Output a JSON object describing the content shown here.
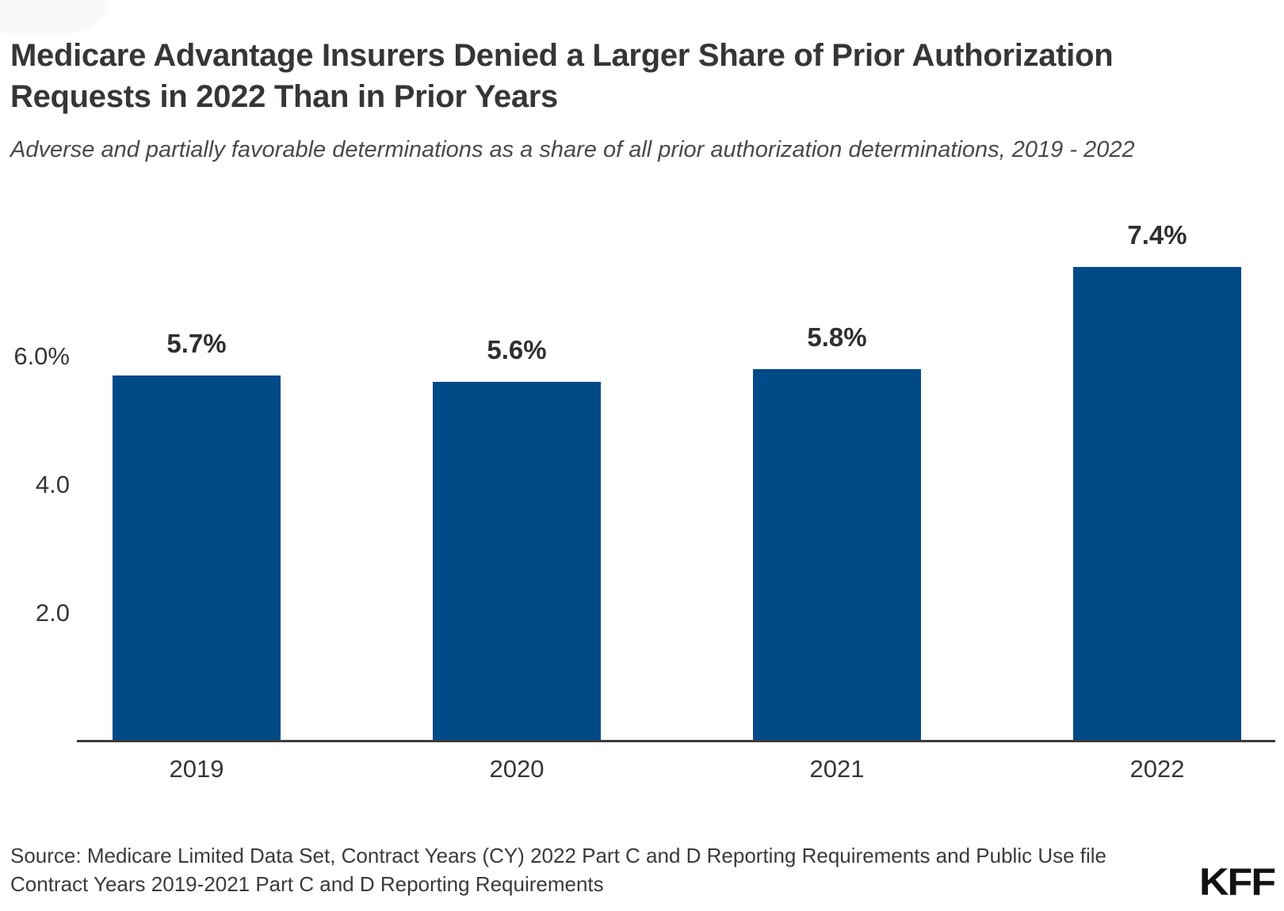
{
  "header": {
    "title": "Medicare Advantage Insurers Denied a Larger Share of Prior Authorization Requests in 2022 Than in Prior Years",
    "subtitle": "Adverse and partially favorable determinations as a share of all prior authorization determinations, 2019 - 2022"
  },
  "chart_data": {
    "type": "bar",
    "title": "Medicare Advantage Insurers Denied a Larger Share of Prior Authorization Requests in 2022 Than in Prior Years",
    "subtitle": "Adverse and partially favorable determinations as a share of all prior authorization determinations, 2019 - 2022",
    "categories": [
      "2019",
      "2020",
      "2021",
      "2022"
    ],
    "values": [
      5.7,
      5.6,
      5.8,
      7.4
    ],
    "value_labels": [
      "5.7%",
      "5.6%",
      "5.8%",
      "7.4%"
    ],
    "unit": "percent",
    "yticks": {
      "values": [
        6.0,
        4.0,
        2.0
      ],
      "labels": [
        "6.0%",
        "4.0",
        "2.0"
      ]
    },
    "ylim": [
      0,
      7.8
    ],
    "grid": false,
    "legend": null,
    "bar_color": "#004a87",
    "axis_color": "#3c3c3c"
  },
  "footer": {
    "source": "Source: Medicare Limited Data Set, Contract Years (CY) 2022 Part C and D Reporting Requirements and Public Use file Contract Years 2019-2021 Part C and D Reporting Requirements",
    "logo": "KFF"
  }
}
